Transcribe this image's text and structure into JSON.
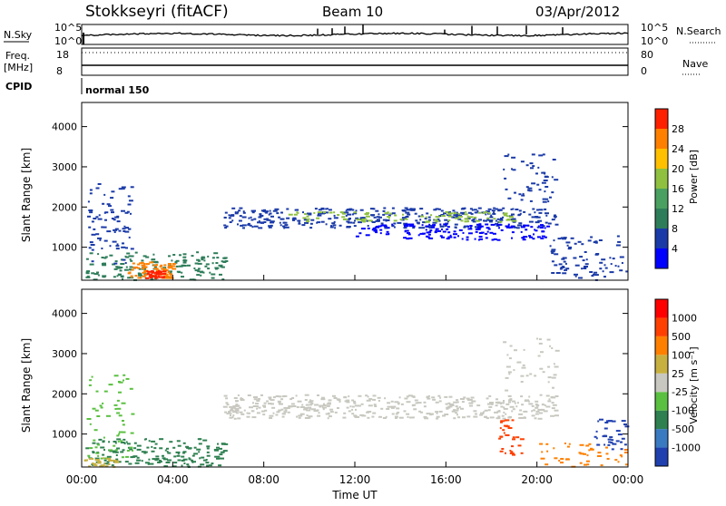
{
  "header": {
    "station": "Stokkseyri (fitACF)",
    "beam": "Beam 10",
    "date": "03/Apr/2012"
  },
  "top_panels": {
    "nsky_label": "N.Sky",
    "nsky_ticks": [
      "10^5",
      "10^0"
    ],
    "nsearch_label": "N.Search",
    "nsearch_ticks": [
      "10^5",
      "10^0"
    ],
    "freq_label_line1": "Freq.",
    "freq_label_line2": "[MHz]",
    "freq_ticks": [
      "18",
      "8"
    ],
    "nave_label": "Nave",
    "nave_ticks": [
      "80",
      "0"
    ],
    "cpid_label": "CPID",
    "cpid_value": "normal 150"
  },
  "chart_data": [
    {
      "type": "heatmap",
      "name": "power",
      "ylabel": "Slant Range [km]",
      "ylim": [
        180,
        4600
      ],
      "yticks": [
        "4000",
        "3000",
        "2000",
        "1000"
      ],
      "yticks_values": [
        4000,
        3000,
        2000,
        1000
      ],
      "x_range_hours": [
        0,
        24
      ],
      "colorbar": {
        "label": "Power [dB]",
        "ticks": [
          "28",
          "24",
          "20",
          "16",
          "12",
          "8",
          "4"
        ],
        "colors": [
          "#0000ff",
          "#1a3aa8",
          "#2e7d5a",
          "#4aa060",
          "#8fc040",
          "#ffc000",
          "#ff8000",
          "#ff2000"
        ]
      }
    },
    {
      "type": "heatmap",
      "name": "velocity",
      "ylabel": "Slant Range [km]",
      "ylim": [
        180,
        4600
      ],
      "yticks": [
        "4000",
        "3000",
        "2000",
        "1000"
      ],
      "yticks_values": [
        4000,
        3000,
        2000,
        1000
      ],
      "x_range_hours": [
        0,
        24
      ],
      "colorbar": {
        "label": "Velocity [m s⁻¹]",
        "ticks": [
          "1000",
          "500",
          "100",
          "25",
          "-25",
          "-100",
          "-500",
          "-1000"
        ],
        "colors": [
          "#2040b0",
          "#3a7ac0",
          "#2e8050",
          "#5ac040",
          "#c8c8c0",
          "#c8b040",
          "#ff8000",
          "#ff4000",
          "#ff0000"
        ]
      }
    }
  ],
  "xaxis": {
    "label": "Time UT",
    "ticks": [
      "00:00",
      "04:00",
      "08:00",
      "12:00",
      "16:00",
      "20:00",
      "00:00"
    ],
    "tick_hours": [
      0,
      4,
      8,
      12,
      16,
      20,
      24
    ]
  },
  "scatter_regions": {
    "power": [
      {
        "t0": 0.15,
        "t1": 6.3,
        "r0": 200,
        "r1": 900,
        "color": "#2e7d5a",
        "n": 160
      },
      {
        "t0": 2.0,
        "t1": 4.0,
        "r0": 250,
        "r1": 650,
        "color": "#ff8000",
        "n": 70
      },
      {
        "t0": 2.8,
        "t1": 3.6,
        "r0": 250,
        "r1": 450,
        "color": "#ff2000",
        "n": 40
      },
      {
        "t0": 0.2,
        "t1": 2.2,
        "r0": 600,
        "r1": 2600,
        "color": "#1a3aa8",
        "n": 80
      },
      {
        "t0": 6.2,
        "t1": 20.8,
        "r0": 1500,
        "r1": 2000,
        "color": "#1a3aa8",
        "n": 380
      },
      {
        "t0": 9.0,
        "t1": 19.0,
        "r0": 1650,
        "r1": 1900,
        "color": "#8fc040",
        "n": 90
      },
      {
        "t0": 12.0,
        "t1": 20.5,
        "r0": 1200,
        "r1": 1600,
        "color": "#0000ff",
        "n": 150
      },
      {
        "t0": 18.5,
        "t1": 20.8,
        "r0": 2100,
        "r1": 3400,
        "color": "#1a3aa8",
        "n": 50
      },
      {
        "t0": 20.5,
        "t1": 23.9,
        "r0": 200,
        "r1": 1300,
        "color": "#1a3aa8",
        "n": 80
      }
    ],
    "velocity": [
      {
        "t0": 0.15,
        "t1": 6.3,
        "r0": 200,
        "r1": 900,
        "color": "#2e8050",
        "n": 170
      },
      {
        "t0": 0.2,
        "t1": 2.2,
        "r0": 400,
        "r1": 2500,
        "color": "#5ac040",
        "n": 60
      },
      {
        "t0": 0.1,
        "t1": 1.5,
        "r0": 200,
        "r1": 450,
        "color": "#c8b040",
        "n": 25
      },
      {
        "t0": 6.2,
        "t1": 20.8,
        "r0": 1400,
        "r1": 2000,
        "color": "#c8c8c0",
        "n": 420
      },
      {
        "t0": 18.5,
        "t1": 20.8,
        "r0": 2100,
        "r1": 3400,
        "color": "#c8c8c0",
        "n": 40
      },
      {
        "t0": 18.3,
        "t1": 19.3,
        "r0": 500,
        "r1": 1400,
        "color": "#ff4000",
        "n": 30
      },
      {
        "t0": 20.0,
        "t1": 23.9,
        "r0": 200,
        "r1": 800,
        "color": "#ff8000",
        "n": 45
      },
      {
        "t0": 22.5,
        "t1": 23.9,
        "r0": 600,
        "r1": 1400,
        "color": "#2040b0",
        "n": 35
      }
    ]
  }
}
